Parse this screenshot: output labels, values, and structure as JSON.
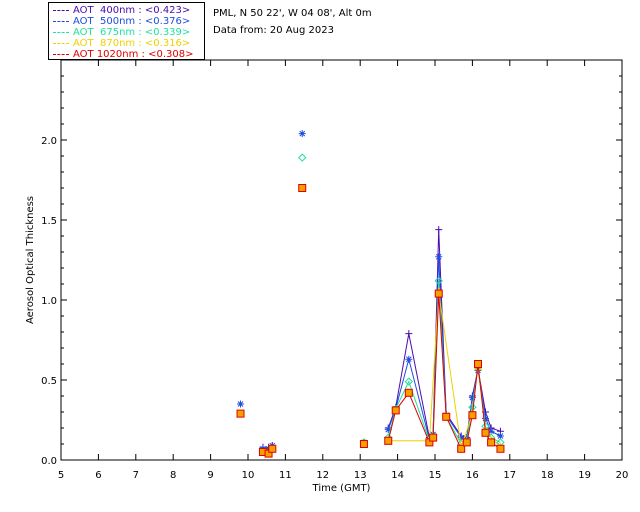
{
  "header": {
    "site_line": "PML, N 50 22', W 04 08', Alt 0m",
    "date_line": "Data from: 20 Aug 2023"
  },
  "legend": [
    {
      "label": "AOT  400nm : <0.423>",
      "color": "#4b0bb0"
    },
    {
      "label": "AOT  500nm : <0.376>",
      "color": "#1f4de0"
    },
    {
      "label": "AOT  675nm : <0.339>",
      "color": "#22e0a0"
    },
    {
      "label": "AOT  870nm : <0.316>",
      "color": "#f0d000"
    },
    {
      "label": "AOT 1020nm : <0.308>",
      "color": "#e00000"
    }
  ],
  "chart_data": {
    "type": "scatter",
    "xlabel": "Time (GMT)",
    "ylabel": "Aerosol Optical Thickness",
    "xlim": [
      5,
      20
    ],
    "ylim": [
      0,
      2.5
    ],
    "xticks": [
      "5",
      "6",
      "7",
      "8",
      "9",
      "10",
      "11",
      "12",
      "13",
      "14",
      "15",
      "16",
      "17",
      "18",
      "19",
      "20"
    ],
    "yticks": [
      "0.0",
      "0.5",
      "1.0",
      "1.5",
      "2.0"
    ],
    "series": [
      {
        "name": "AOT  400nm",
        "color": "#4b0bb0",
        "marker": "plus",
        "points": [
          [
            10.4,
            0.08
          ],
          [
            10.55,
            0.08
          ],
          [
            10.65,
            0.09
          ],
          [
            13.1,
            0.11
          ],
          [
            13.75,
            0.2
          ],
          [
            13.95,
            0.33
          ],
          [
            14.3,
            0.79
          ],
          [
            14.85,
            0.14
          ],
          [
            14.95,
            0.16
          ],
          [
            15.1,
            1.44
          ],
          [
            15.3,
            0.29
          ],
          [
            15.7,
            0.15
          ],
          [
            15.85,
            0.14
          ],
          [
            16.0,
            0.4
          ],
          [
            16.15,
            0.57
          ],
          [
            16.35,
            0.3
          ],
          [
            16.5,
            0.2
          ],
          [
            16.75,
            0.18
          ]
        ]
      },
      {
        "name": "AOT  500nm",
        "color": "#1f4de0",
        "marker": "asterisk",
        "points": [
          [
            9.8,
            0.35
          ],
          [
            10.4,
            0.07
          ],
          [
            10.55,
            0.07
          ],
          [
            10.65,
            0.09
          ],
          [
            11.45,
            2.04
          ],
          [
            13.1,
            0.11
          ],
          [
            13.75,
            0.19
          ],
          [
            13.95,
            0.32
          ],
          [
            14.3,
            0.63
          ],
          [
            14.85,
            0.13
          ],
          [
            14.95,
            0.16
          ],
          [
            15.1,
            1.27
          ],
          [
            15.3,
            0.28
          ],
          [
            15.7,
            0.14
          ],
          [
            15.85,
            0.13
          ],
          [
            16.0,
            0.39
          ],
          [
            16.15,
            0.56
          ],
          [
            16.35,
            0.26
          ],
          [
            16.5,
            0.18
          ],
          [
            16.75,
            0.15
          ]
        ]
      },
      {
        "name": "AOT  675nm",
        "color": "#22e0a0",
        "marker": "diamond",
        "points": [
          [
            11.45,
            1.89
          ],
          [
            13.1,
            0.11
          ],
          [
            13.75,
            0.14
          ],
          [
            13.95,
            0.32
          ],
          [
            14.3,
            0.49
          ],
          [
            14.85,
            0.12
          ],
          [
            14.95,
            0.15
          ],
          [
            15.1,
            1.12
          ],
          [
            15.3,
            0.27
          ],
          [
            15.7,
            0.1
          ],
          [
            15.85,
            0.12
          ],
          [
            16.0,
            0.33
          ],
          [
            16.15,
            0.58
          ],
          [
            16.35,
            0.21
          ],
          [
            16.5,
            0.14
          ],
          [
            16.75,
            0.11
          ]
        ]
      },
      {
        "name": "AOT  870nm",
        "color": "#f0d000",
        "marker": "triangle",
        "points": [
          [
            13.75,
            0.12
          ],
          [
            14.85,
            0.12
          ],
          [
            15.1,
            1.05
          ],
          [
            15.7,
            0.08
          ],
          [
            16.0,
            0.29
          ],
          [
            16.15,
            0.59
          ],
          [
            16.35,
            0.18
          ],
          [
            16.75,
            0.08
          ]
        ]
      },
      {
        "name": "AOT 1020nm",
        "color": "#e00000",
        "marker": "square",
        "points": [
          [
            9.8,
            0.29
          ],
          [
            10.4,
            0.05
          ],
          [
            10.55,
            0.04
          ],
          [
            10.65,
            0.07
          ],
          [
            11.45,
            1.7
          ],
          [
            13.1,
            0.1
          ],
          [
            13.75,
            0.12
          ],
          [
            13.95,
            0.31
          ],
          [
            14.3,
            0.42
          ],
          [
            14.85,
            0.11
          ],
          [
            14.95,
            0.14
          ],
          [
            15.1,
            1.04
          ],
          [
            15.3,
            0.27
          ],
          [
            15.7,
            0.07
          ],
          [
            15.85,
            0.11
          ],
          [
            16.0,
            0.28
          ],
          [
            16.15,
            0.6
          ],
          [
            16.35,
            0.17
          ],
          [
            16.5,
            0.11
          ],
          [
            16.75,
            0.07
          ]
        ]
      }
    ]
  }
}
